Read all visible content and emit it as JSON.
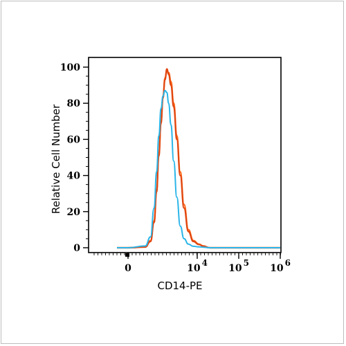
{
  "chart_data": {
    "type": "line",
    "xlabel": "CD14-PE",
    "ylabel": "Relative Cell Number",
    "x_scale": "logicle",
    "ylim": [
      0,
      100
    ],
    "grid": false,
    "y_ticks": [
      "0",
      "20",
      "40",
      "60",
      "80",
      "100"
    ],
    "x_ticks": [
      {
        "base": "0",
        "exp": ""
      },
      {
        "base": "10",
        "exp": "4"
      },
      {
        "base": "10",
        "exp": "5"
      },
      {
        "base": "10",
        "exp": "6"
      }
    ],
    "series": [
      {
        "color": "#ff6a1a",
        "points": [
          [
            -800,
            0
          ],
          [
            0,
            0
          ],
          [
            800,
            0.5
          ],
          [
            1300,
            4
          ],
          [
            1700,
            15
          ],
          [
            2000,
            32
          ],
          [
            2300,
            52
          ],
          [
            2600,
            70
          ],
          [
            2900,
            84
          ],
          [
            3200,
            94
          ],
          [
            3500,
            98
          ],
          [
            3800,
            97
          ],
          [
            4200,
            92
          ],
          [
            4700,
            80
          ],
          [
            5300,
            62
          ],
          [
            6000,
            42
          ],
          [
            6800,
            24
          ],
          [
            7800,
            10
          ],
          [
            9000,
            4
          ],
          [
            11000,
            2
          ],
          [
            14000,
            1
          ],
          [
            20000,
            0
          ],
          [
            1000000,
            0
          ]
        ]
      },
      {
        "color": "#e0450f",
        "points": [
          [
            -800,
            0
          ],
          [
            0,
            0
          ],
          [
            800,
            0.4
          ],
          [
            1300,
            3.5
          ],
          [
            1700,
            14
          ],
          [
            2000,
            31
          ],
          [
            2300,
            51
          ],
          [
            2600,
            69
          ],
          [
            2900,
            83
          ],
          [
            3200,
            93
          ],
          [
            3500,
            99
          ],
          [
            3800,
            96
          ],
          [
            4200,
            90
          ],
          [
            4700,
            78
          ],
          [
            5300,
            60
          ],
          [
            6000,
            40
          ],
          [
            6800,
            22
          ],
          [
            7800,
            9
          ],
          [
            9000,
            3.5
          ],
          [
            11000,
            1.8
          ],
          [
            14000,
            0.8
          ],
          [
            20000,
            0
          ],
          [
            1000000,
            0
          ]
        ]
      },
      {
        "color": "#2ab5e8",
        "points": [
          [
            -800,
            0
          ],
          [
            0,
            0
          ],
          [
            800,
            1
          ],
          [
            1300,
            6
          ],
          [
            1700,
            22
          ],
          [
            2000,
            42
          ],
          [
            2300,
            62
          ],
          [
            2600,
            77
          ],
          [
            2900,
            84
          ],
          [
            3200,
            87
          ],
          [
            3500,
            86
          ],
          [
            3800,
            80
          ],
          [
            4200,
            68
          ],
          [
            4700,
            48
          ],
          [
            5300,
            28
          ],
          [
            6000,
            12
          ],
          [
            6800,
            5
          ],
          [
            7800,
            2
          ],
          [
            9000,
            0.8
          ],
          [
            11000,
            0.5
          ],
          [
            14000,
            0.3
          ],
          [
            20000,
            0
          ],
          [
            1000000,
            0
          ]
        ]
      }
    ]
  }
}
